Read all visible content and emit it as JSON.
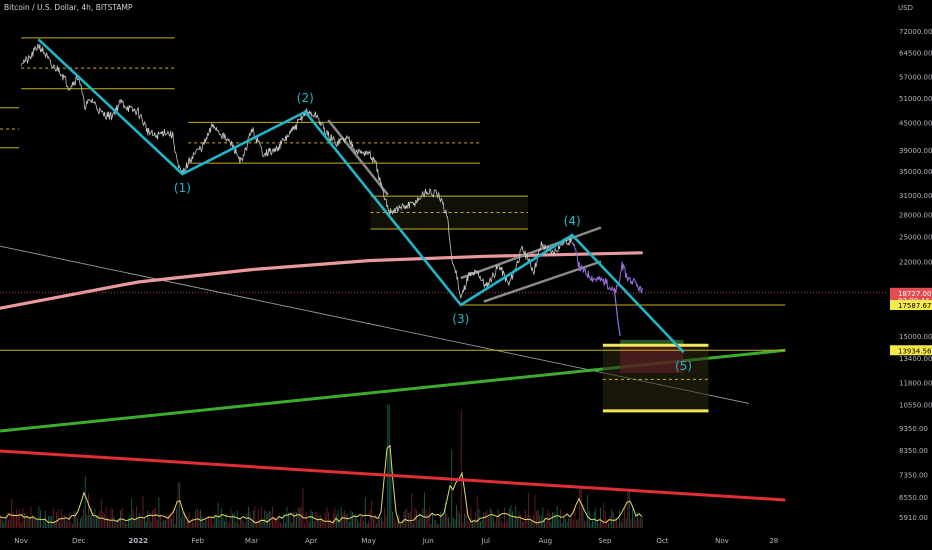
{
  "chart_title": "Bitcoin / U.S. Dollar, 4h, BITSTAMP",
  "currency": "USD",
  "colors": {
    "background": "#000000",
    "price": "#c8c8c8",
    "price_recent": "#9a6fe0",
    "wave": "#1fb6c9",
    "level": "#c9b11b",
    "level_bold": "#f2e65a",
    "long_ma": "#e89a9e",
    "support": "#3dac2e",
    "resistance": "#e02e35",
    "channel": "#8a8a8a",
    "diagonal": "#9a9a9a",
    "volume_ma": "#e6d96a",
    "last_price_tag": "#e24c52",
    "level_tag": "#f6e94a",
    "grid_text": "#b2b5be"
  },
  "chart_data": {
    "type": "line",
    "title": "Bitcoin / U.S. Dollar, 4h, BITSTAMP",
    "scale": "log",
    "y_axis_ticks": [
      "72000.00",
      "64500.00",
      "57000.00",
      "51000.00",
      "45000.00",
      "39000.00",
      "35000.00",
      "31000.00",
      "28000.00",
      "25000.00",
      "22000.00",
      "15000.00",
      "13400.00",
      "11800.00",
      "10550.00",
      "9350.00",
      "8350.00",
      "7350.00",
      "6550.00",
      "5910.00"
    ],
    "x_axis_ticks": [
      "Nov",
      "Dec",
      "2022",
      "Feb",
      "Mar",
      "Apr",
      "May",
      "Jun",
      "Jul",
      "Aug",
      "Sep",
      "Oct",
      "Nov",
      "28"
    ],
    "price_tags": [
      {
        "label": "18727.00",
        "sub": "03:00:44",
        "price": 18727,
        "kind": "last"
      },
      {
        "label": "17587.67",
        "price": 17587.67,
        "kind": "level"
      },
      {
        "label": "13934.56",
        "price": 13934.56,
        "kind": "level"
      }
    ],
    "price_series": [
      [
        "2021-11-01",
        61500
      ],
      [
        "2021-11-05",
        62000
      ],
      [
        "2021-11-10",
        67000
      ],
      [
        "2021-11-13",
        64500
      ],
      [
        "2021-11-17",
        60000
      ],
      [
        "2021-11-21",
        59000
      ],
      [
        "2021-11-26",
        54000
      ],
      [
        "2021-12-01",
        57000
      ],
      [
        "2021-12-04",
        49000
      ],
      [
        "2021-12-08",
        50500
      ],
      [
        "2021-12-13",
        47000
      ],
      [
        "2021-12-18",
        46500
      ],
      [
        "2021-12-23",
        50000
      ],
      [
        "2021-12-28",
        48000
      ],
      [
        "2022-01-01",
        47500
      ],
      [
        "2022-01-06",
        43000
      ],
      [
        "2022-01-10",
        41800
      ],
      [
        "2022-01-15",
        43000
      ],
      [
        "2022-01-19",
        42000
      ],
      [
        "2022-01-22",
        35500
      ],
      [
        "2022-01-24",
        34500
      ],
      [
        "2022-01-29",
        37800
      ],
      [
        "2022-02-04",
        40000
      ],
      [
        "2022-02-09",
        44500
      ],
      [
        "2022-02-14",
        42000
      ],
      [
        "2022-02-19",
        40000
      ],
      [
        "2022-02-24",
        36500
      ],
      [
        "2022-03-01",
        43500
      ],
      [
        "2022-03-07",
        38500
      ],
      [
        "2022-03-13",
        38800
      ],
      [
        "2022-03-18",
        41000
      ],
      [
        "2022-03-24",
        44000
      ],
      [
        "2022-03-29",
        47500
      ],
      [
        "2022-04-04",
        46500
      ],
      [
        "2022-04-09",
        42500
      ],
      [
        "2022-04-14",
        40500
      ],
      [
        "2022-04-20",
        41500
      ],
      [
        "2022-04-26",
        38500
      ],
      [
        "2022-05-01",
        38500
      ],
      [
        "2022-05-05",
        36000
      ],
      [
        "2022-05-09",
        30500
      ],
      [
        "2022-05-12",
        28500
      ],
      [
        "2022-05-18",
        29000
      ],
      [
        "2022-05-24",
        29500
      ],
      [
        "2022-05-31",
        31500
      ],
      [
        "2022-06-06",
        31000
      ],
      [
        "2022-06-11",
        28000
      ],
      [
        "2022-06-13",
        22500
      ],
      [
        "2022-06-16",
        20500
      ],
      [
        "2022-06-18",
        18200
      ],
      [
        "2022-06-22",
        20500
      ],
      [
        "2022-06-27",
        20800
      ],
      [
        "2022-07-01",
        19300
      ],
      [
        "2022-07-08",
        21600
      ],
      [
        "2022-07-13",
        19500
      ],
      [
        "2022-07-20",
        23500
      ],
      [
        "2022-07-26",
        21000
      ],
      [
        "2022-07-30",
        24000
      ],
      [
        "2022-08-05",
        23000
      ],
      [
        "2022-08-11",
        24500
      ],
      [
        "2022-08-15",
        24500
      ],
      [
        "2022-08-19",
        21300
      ],
      [
        "2022-08-26",
        20200
      ],
      [
        "2022-09-01",
        19900
      ],
      [
        "2022-09-06",
        18800
      ],
      [
        "2022-09-08",
        19300
      ],
      [
        "2022-09-10",
        21500
      ],
      [
        "2022-09-13",
        20200
      ],
      [
        "2022-09-15",
        19900
      ],
      [
        "2022-09-18",
        19400
      ],
      [
        "2022-09-20",
        18900
      ],
      [
        "2022-09-21",
        18727
      ]
    ],
    "elliott_wave": [
      {
        "label": "(1)",
        "date": "2022-01-24",
        "price": 34500
      },
      {
        "label": "(2)",
        "date": "2022-03-29",
        "price": 47500
      },
      {
        "label": "(3)",
        "date": "2022-06-18",
        "price": 17600
      },
      {
        "label": "(4)",
        "date": "2022-08-15",
        "price": 25200
      },
      {
        "label": "(5)",
        "date": "2022-10-12",
        "price": 13800
      }
    ],
    "wave_start": {
      "date": "2021-11-10",
      "price": 69000
    },
    "levels": [
      {
        "from": "2021-11-01",
        "to": "2022-01-20",
        "price": 69500,
        "style": "solid"
      },
      {
        "from": "2021-11-01",
        "to": "2022-01-20",
        "price": 59500,
        "style": "dashed"
      },
      {
        "from": "2021-11-01",
        "to": "2022-01-20",
        "price": 53500,
        "style": "solid"
      },
      {
        "from": "2021-10-21",
        "to": "2021-10-31",
        "price": 48500,
        "style": "solid"
      },
      {
        "from": "2021-10-21",
        "to": "2021-10-31",
        "price": 43500,
        "style": "dashed"
      },
      {
        "from": "2021-10-21",
        "to": "2021-10-31",
        "price": 39500,
        "style": "solid"
      },
      {
        "from": "2022-01-27",
        "to": "2022-06-28",
        "price": 45000,
        "style": "solid"
      },
      {
        "from": "2022-01-27",
        "to": "2022-06-28",
        "price": 40500,
        "style": "dashed"
      },
      {
        "from": "2022-01-27",
        "to": "2022-06-28",
        "price": 36500,
        "style": "solid"
      },
      {
        "from": "2022-05-02",
        "to": "2022-07-23",
        "price": 30800,
        "style": "solid"
      },
      {
        "from": "2022-05-02",
        "to": "2022-07-23",
        "price": 28300,
        "style": "dashed"
      },
      {
        "from": "2022-05-02",
        "to": "2022-07-23",
        "price": 26000,
        "style": "solid"
      },
      {
        "from": "2022-06-18",
        "to": "2022-12-04",
        "price": 17587.67,
        "style": "solid"
      },
      {
        "from": "2021-10-21",
        "to": "2022-12-04",
        "price": 13934.56,
        "style": "solid"
      }
    ],
    "target_zone": {
      "from": "2022-08-31",
      "to": "2022-10-25",
      "top": 14300,
      "mid": 12000,
      "bottom": 10200
    },
    "risk_box": {
      "from": "2022-09-09",
      "to": "2022-10-12",
      "top": 14700,
      "entry": 14300,
      "bottom": 12400
    },
    "channels": [
      {
        "points": [
          [
            "2022-04-10",
            45500
          ],
          [
            "2022-05-11",
            31000
          ]
        ]
      },
      {
        "points": [
          [
            "2022-06-18",
            20200
          ],
          [
            "2022-08-30",
            26200
          ]
        ]
      },
      {
        "points": [
          [
            "2022-06-30",
            17900
          ],
          [
            "2022-08-30",
            22000
          ]
        ]
      }
    ],
    "diagonal_line": [
      [
        "2021-10-21",
        23800
      ],
      [
        "2022-11-15",
        10600
      ]
    ],
    "long_ma": [
      [
        "2021-10-21",
        17300
      ],
      [
        "2022-01-01",
        19800
      ],
      [
        "2022-03-01",
        21100
      ],
      [
        "2022-05-01",
        22100
      ],
      [
        "2022-07-01",
        22600
      ],
      [
        "2022-09-20",
        23000
      ]
    ],
    "support_line": [
      [
        "2021-10-21",
        9200
      ],
      [
        "2022-12-04",
        13934.56
      ]
    ],
    "resistance_line": [
      [
        "2021-10-21",
        8300
      ],
      [
        "2022-12-04",
        6450
      ]
    ],
    "volume": {
      "series_from": "2021-10-21",
      "series_to": "2022-09-21",
      "spikes": [
        [
          "2022-05-11",
          0.95
        ],
        [
          "2022-06-18",
          0.9
        ],
        [
          "2022-05-12",
          0.55
        ],
        [
          "2022-06-13",
          0.6
        ],
        [
          "2021-12-04",
          0.4
        ],
        [
          "2022-01-22",
          0.35
        ],
        [
          "2022-08-19",
          0.3
        ],
        [
          "2022-09-13",
          0.3
        ]
      ]
    }
  }
}
